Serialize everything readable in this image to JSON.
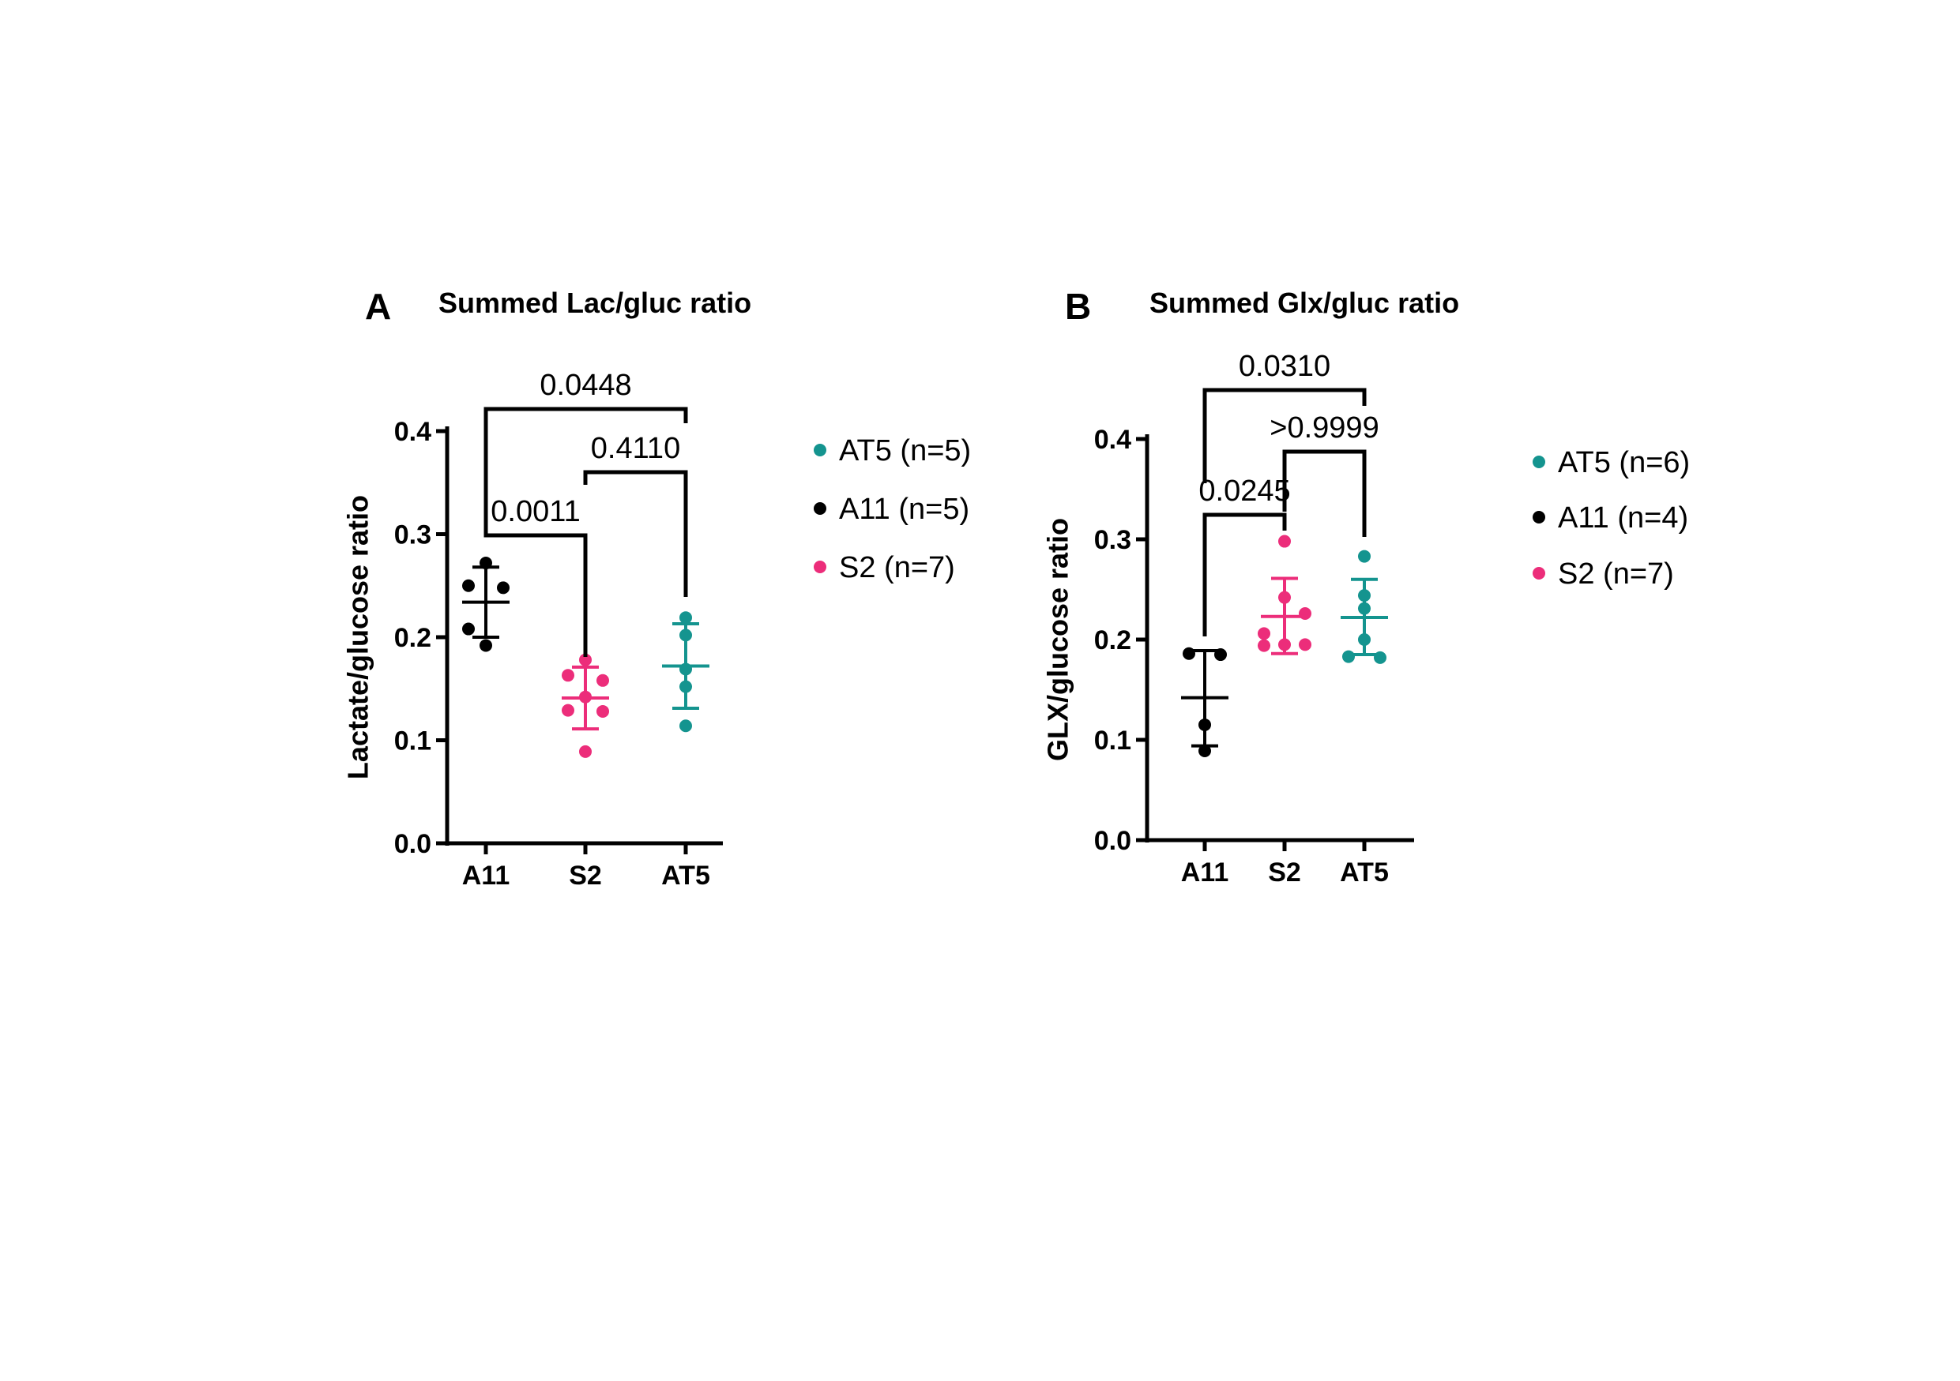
{
  "colors": {
    "A11": "#000000",
    "S2": "#ec2d7a",
    "AT5": "#14948f"
  },
  "chart_data": [
    {
      "type": "scatter",
      "panel": "A",
      "title": "Summed Lac/gluc ratio",
      "xlabel": "",
      "ylabel": "Lactate/glucose ratio",
      "ylim": [
        0,
        0.4
      ],
      "yticks": [
        "0.0",
        "0.1",
        "0.2",
        "0.3",
        "0.4"
      ],
      "categories": [
        "A11",
        "S2",
        "AT5"
      ],
      "series": [
        {
          "name": "A11",
          "points": [
            0.272,
            0.25,
            0.248,
            0.208,
            0.192
          ],
          "mean": 0.234,
          "sd_low": 0.2,
          "sd_high": 0.268
        },
        {
          "name": "S2",
          "points": [
            0.178,
            0.163,
            0.158,
            0.142,
            0.129,
            0.128,
            0.089
          ],
          "mean": 0.141,
          "sd_low": 0.111,
          "sd_high": 0.171
        },
        {
          "name": "AT5",
          "points": [
            0.219,
            0.202,
            0.169,
            0.152,
            0.114
          ],
          "mean": 0.172,
          "sd_low": 0.131,
          "sd_high": 0.213
        }
      ],
      "comparisons": [
        {
          "groups": [
            "A11",
            "AT5"
          ],
          "p": "0.0448"
        },
        {
          "groups": [
            "S2",
            "AT5"
          ],
          "p": "0.4110"
        },
        {
          "groups": [
            "A11",
            "S2"
          ],
          "p": "0.0011"
        }
      ],
      "legend": [
        "AT5 (n=5)",
        "A11 (n=5)",
        "S2 (n=7)"
      ]
    },
    {
      "type": "scatter",
      "panel": "B",
      "title": "Summed Glx/gluc ratio",
      "xlabel": "",
      "ylabel": "GLX/glucose ratio",
      "ylim": [
        0,
        0.4
      ],
      "yticks": [
        "0.0",
        "0.1",
        "0.2",
        "0.3",
        "0.4"
      ],
      "categories": [
        "A11",
        "S2",
        "AT5"
      ],
      "series": [
        {
          "name": "A11",
          "points": [
            0.186,
            0.185,
            0.115,
            0.089
          ],
          "mean": 0.142,
          "sd_low": 0.094,
          "sd_high": 0.189
        },
        {
          "name": "S2",
          "points": [
            0.298,
            0.242,
            0.226,
            0.206,
            0.195,
            0.195,
            0.194
          ],
          "mean": 0.223,
          "sd_low": 0.186,
          "sd_high": 0.261
        },
        {
          "name": "AT5",
          "points": [
            0.283,
            0.244,
            0.231,
            0.2,
            0.183,
            0.182
          ],
          "mean": 0.222,
          "sd_low": 0.185,
          "sd_high": 0.26
        }
      ],
      "comparisons": [
        {
          "groups": [
            "A11",
            "AT5"
          ],
          "p": "0.0310"
        },
        {
          "groups": [
            "S2",
            "AT5"
          ],
          "p": ">0.9999"
        },
        {
          "groups": [
            "A11",
            "S2"
          ],
          "p": "0.0245"
        }
      ],
      "legend": [
        "AT5 (n=6)",
        "A11 (n=4)",
        "S2 (n=7)"
      ]
    }
  ]
}
